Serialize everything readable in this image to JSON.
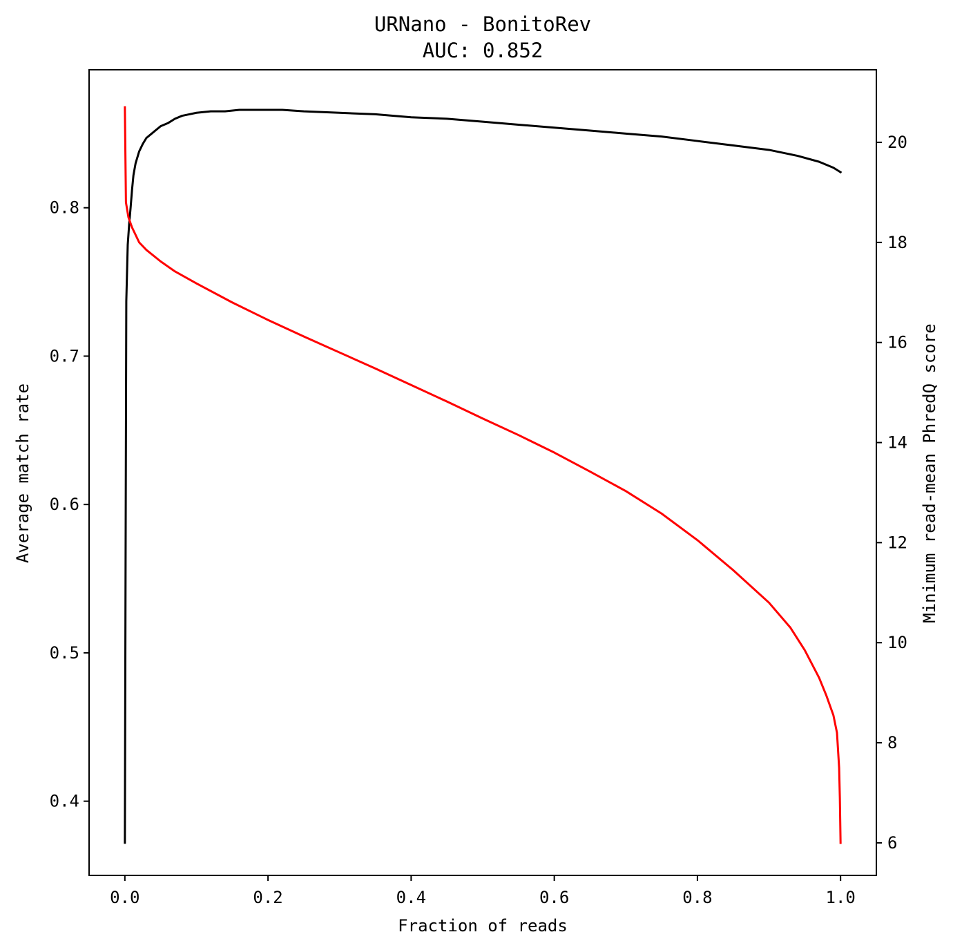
{
  "chart_data": {
    "type": "line",
    "title": "URNano - BonitoRev",
    "subtitle": "AUC: 0.852",
    "xlabel": "Fraction of reads",
    "ylabel_left": "Average match rate",
    "ylabel_right": "Minimum read-mean PhredQ score",
    "xlim": [
      -0.05,
      1.05
    ],
    "ylim_left": [
      0.35,
      0.893
    ],
    "ylim_right": [
      5.35,
      21.45
    ],
    "x_ticks": [
      "0.0",
      "0.2",
      "0.4",
      "0.6",
      "0.8",
      "1.0"
    ],
    "y_left_ticks": [
      "0.4",
      "0.5",
      "0.6",
      "0.7",
      "0.8"
    ],
    "y_right_ticks": [
      "6",
      "8",
      "10",
      "12",
      "14",
      "16",
      "18",
      "20"
    ],
    "grid": false,
    "series": [
      {
        "axis": "left",
        "color": "#000000",
        "points": [
          [
            0.0,
            0.372
          ],
          [
            0.001,
            0.56
          ],
          [
            0.002,
            0.737
          ],
          [
            0.004,
            0.775
          ],
          [
            0.006,
            0.789
          ],
          [
            0.008,
            0.8
          ],
          [
            0.01,
            0.812
          ],
          [
            0.012,
            0.822
          ],
          [
            0.015,
            0.83
          ],
          [
            0.02,
            0.838
          ],
          [
            0.025,
            0.843
          ],
          [
            0.03,
            0.847
          ],
          [
            0.04,
            0.851
          ],
          [
            0.05,
            0.855
          ],
          [
            0.06,
            0.857
          ],
          [
            0.07,
            0.86
          ],
          [
            0.08,
            0.862
          ],
          [
            0.09,
            0.863
          ],
          [
            0.1,
            0.864
          ],
          [
            0.12,
            0.865
          ],
          [
            0.14,
            0.865
          ],
          [
            0.16,
            0.866
          ],
          [
            0.18,
            0.866
          ],
          [
            0.2,
            0.866
          ],
          [
            0.22,
            0.866
          ],
          [
            0.25,
            0.865
          ],
          [
            0.3,
            0.864
          ],
          [
            0.35,
            0.863
          ],
          [
            0.4,
            0.861
          ],
          [
            0.45,
            0.86
          ],
          [
            0.5,
            0.858
          ],
          [
            0.55,
            0.856
          ],
          [
            0.6,
            0.854
          ],
          [
            0.65,
            0.852
          ],
          [
            0.7,
            0.85
          ],
          [
            0.75,
            0.848
          ],
          [
            0.8,
            0.845
          ],
          [
            0.85,
            0.842
          ],
          [
            0.9,
            0.839
          ],
          [
            0.94,
            0.835
          ],
          [
            0.97,
            0.831
          ],
          [
            0.99,
            0.827
          ],
          [
            1.0,
            0.824
          ]
        ]
      },
      {
        "axis": "right",
        "color": "#ff0000",
        "points": [
          [
            0.0,
            20.7
          ],
          [
            0.0015,
            18.8
          ],
          [
            0.005,
            18.5
          ],
          [
            0.01,
            18.3
          ],
          [
            0.02,
            18.0
          ],
          [
            0.03,
            17.85
          ],
          [
            0.05,
            17.62
          ],
          [
            0.07,
            17.42
          ],
          [
            0.1,
            17.18
          ],
          [
            0.15,
            16.8
          ],
          [
            0.2,
            16.45
          ],
          [
            0.25,
            16.12
          ],
          [
            0.3,
            15.8
          ],
          [
            0.35,
            15.48
          ],
          [
            0.4,
            15.15
          ],
          [
            0.45,
            14.82
          ],
          [
            0.5,
            14.48
          ],
          [
            0.55,
            14.15
          ],
          [
            0.6,
            13.8
          ],
          [
            0.65,
            13.42
          ],
          [
            0.7,
            13.03
          ],
          [
            0.75,
            12.58
          ],
          [
            0.8,
            12.05
          ],
          [
            0.85,
            11.45
          ],
          [
            0.9,
            10.8
          ],
          [
            0.93,
            10.3
          ],
          [
            0.95,
            9.85
          ],
          [
            0.97,
            9.3
          ],
          [
            0.98,
            8.95
          ],
          [
            0.99,
            8.55
          ],
          [
            0.995,
            8.2
          ],
          [
            0.998,
            7.5
          ],
          [
            0.999,
            6.9
          ],
          [
            1.0,
            6.0
          ]
        ]
      }
    ]
  }
}
